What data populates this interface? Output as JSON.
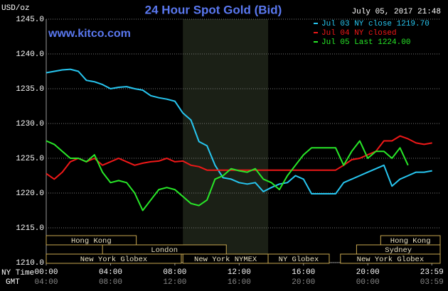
{
  "chart_data": {
    "type": "line",
    "title": "24 Hour Spot Gold (Bid)",
    "y_label": "USD/oz",
    "timestamp": "July 05, 2017 21:48",
    "source": "www.kitco.com",
    "x_axis_label": "NY Time",
    "x2_axis_label": "GMT",
    "x": [
      0,
      0.5,
      1,
      1.5,
      2,
      2.5,
      3,
      3.5,
      4,
      4.5,
      5,
      5.5,
      6,
      6.5,
      7,
      7.5,
      8,
      8.5,
      9,
      9.5,
      10,
      10.5,
      11,
      11.5,
      12,
      12.5,
      13,
      13.5,
      14,
      14.5,
      15,
      15.5,
      16,
      16.5,
      17,
      17.5,
      18,
      18.5,
      19,
      19.5,
      20,
      20.5,
      21,
      21.5,
      22,
      22.5,
      23,
      23.5,
      24
    ],
    "series": [
      {
        "name": "Jul 03 NY close 1219.70",
        "color": "#27c6f0",
        "values": [
          1237.3,
          1237.5,
          1237.7,
          1237.8,
          1237.5,
          1236.2,
          1236.0,
          1235.6,
          1235.0,
          1235.2,
          1235.3,
          1235.0,
          1234.8,
          1234.0,
          1233.7,
          1233.5,
          1233.2,
          1231.5,
          1230.5,
          1227.4,
          1226.8,
          1224.0,
          1222.2,
          1222.0,
          1221.5,
          1221.3,
          1221.5,
          1220.2,
          1220.8,
          1221.3,
          1221.5,
          1222.5,
          1222.0,
          1219.9,
          1219.9,
          1219.9,
          1219.9,
          1221.5,
          1222.0,
          1222.5,
          1223.0,
          1223.5,
          1224.0,
          1221.0,
          1222.0,
          1222.5,
          1223.0,
          1223.0,
          1223.2
        ]
      },
      {
        "name": "Jul 04 NY closed",
        "color": "#f01818",
        "values": [
          1222.8,
          1222.0,
          1223.0,
          1224.5,
          1225.0,
          1224.5,
          1225.0,
          1224.0,
          1224.5,
          1225.0,
          1224.5,
          1224.0,
          1224.3,
          1224.5,
          1224.6,
          1225.0,
          1224.5,
          1224.6,
          1224.0,
          1223.8,
          1223.3,
          1223.3,
          1223.3,
          1223.3,
          1223.3,
          1223.3,
          1223.3,
          1223.3,
          1223.3,
          1223.3,
          1223.3,
          1223.3,
          1223.3,
          1223.3,
          1223.3,
          1223.3,
          1223.3,
          1224.0,
          1224.8,
          1225.0,
          1225.5,
          1226.0,
          1227.5,
          1227.5,
          1228.2,
          1227.8,
          1227.2,
          1227.0,
          1227.2
        ]
      },
      {
        "name": "Jul 05 Last 1224.00",
        "color": "#28e828",
        "values": [
          1227.5,
          1227.0,
          1226.0,
          1225.0,
          1225.0,
          1224.5,
          1225.5,
          1223.0,
          1221.5,
          1221.8,
          1221.5,
          1220.0,
          1217.5,
          1219.0,
          1220.5,
          1220.8,
          1220.5,
          1219.5,
          1218.5,
          1218.2,
          1219.0,
          1222.0,
          1222.5,
          1223.5,
          1223.2,
          1223.0,
          1223.5,
          1222.0,
          1221.5,
          1220.5,
          1222.5,
          1224.0,
          1225.5,
          1226.5,
          1226.5,
          1226.5,
          1226.5,
          1224.0,
          1226.0,
          1227.5,
          1225.0,
          1226.0,
          1226.0,
          1225.0,
          1226.5,
          1224.0,
          null,
          null,
          null
        ]
      }
    ],
    "xlim": [
      0,
      24.5
    ],
    "ylim": [
      1210,
      1245
    ],
    "yticks": [
      {
        "value": 1210,
        "label": "1210.0"
      },
      {
        "value": 1215,
        "label": "1215.0"
      },
      {
        "value": 1220,
        "label": "1220.0"
      },
      {
        "value": 1225,
        "label": "1225.0"
      },
      {
        "value": 1230,
        "label": "1230.0"
      },
      {
        "value": 1235,
        "label": "1235.0"
      },
      {
        "value": 1240,
        "label": "1240.0"
      },
      {
        "value": 1245,
        "label": "1245.0"
      }
    ],
    "xticks": [
      {
        "value": 0,
        "label": "00:00"
      },
      {
        "value": 4,
        "label": "04:00"
      },
      {
        "value": 8,
        "label": "08:00"
      },
      {
        "value": 12,
        "label": "12:00"
      },
      {
        "value": 16,
        "label": "16:00"
      },
      {
        "value": 20,
        "label": "20:00"
      },
      {
        "value": 23.98,
        "label": "23:59"
      }
    ],
    "x2ticks": [
      {
        "value": 0,
        "label": "04:00"
      },
      {
        "value": 4,
        "label": "08:00"
      },
      {
        "value": 8,
        "label": "12:00"
      },
      {
        "value": 12,
        "label": "16:00"
      },
      {
        "value": 16,
        "label": "20:00"
      },
      {
        "value": 20,
        "label": "00:00"
      },
      {
        "value": 23.98,
        "label": "03:59"
      }
    ],
    "shaded_range": [
      8.5,
      13.8
    ],
    "grid": true,
    "sessions": [
      {
        "name": "Hong Kong",
        "row": 0,
        "start": 0,
        "end": 5.6
      },
      {
        "name": "Hong Kong",
        "row": 0,
        "start": 20.8,
        "end": 24.5
      },
      {
        "name": "London",
        "row": 1,
        "start": 3.5,
        "end": 11.2
      },
      {
        "name": "Sydney",
        "row": 1,
        "start": 19.3,
        "end": 24.5
      },
      {
        "name": "New York Globex",
        "row": 2,
        "start": 0,
        "end": 8.4
      },
      {
        "name": "New York NYMEX",
        "row": 2,
        "start": 8.5,
        "end": 13.8
      },
      {
        "name": "NY Globex",
        "row": 2,
        "start": 13.8,
        "end": 17.6
      },
      {
        "name": "New York Globex",
        "row": 2,
        "start": 18.3,
        "end": 24.5
      }
    ]
  }
}
